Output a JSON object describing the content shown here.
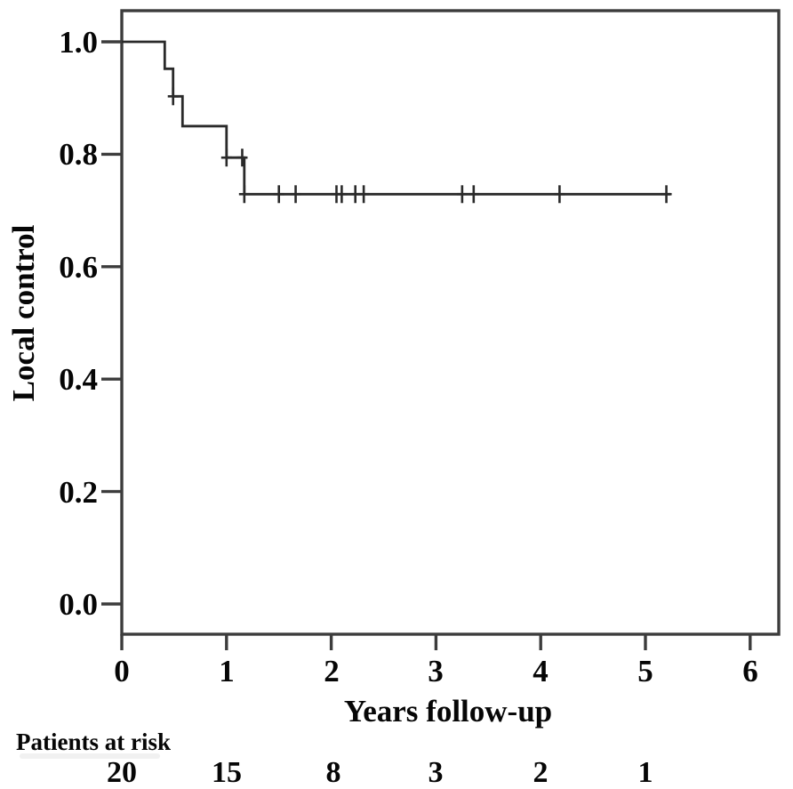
{
  "figure": {
    "background": "#ffffff",
    "frame_color": "#3c3c3c",
    "text_color": "#060606"
  },
  "chart_data": {
    "type": "line",
    "variant": "kaplan_meier_step",
    "title": "",
    "xlabel": "Years follow-up",
    "ylabel": "Local control",
    "xlim": [
      0,
      6.28
    ],
    "ylim": [
      -0.054,
      1.055
    ],
    "grid": false,
    "legend": "none",
    "xticks": [
      {
        "v": 0,
        "label": "0"
      },
      {
        "v": 1,
        "label": "1"
      },
      {
        "v": 2,
        "label": "2"
      },
      {
        "v": 3,
        "label": "3"
      },
      {
        "v": 4,
        "label": "4"
      },
      {
        "v": 5,
        "label": "5"
      },
      {
        "v": 6,
        "label": "6"
      }
    ],
    "yticks": [
      {
        "v": 1.0,
        "label": "1.0"
      },
      {
        "v": 0.8,
        "label": "0.8"
      },
      {
        "v": 0.6,
        "label": "0.6"
      },
      {
        "v": 0.4,
        "label": "0.4"
      },
      {
        "v": 0.2,
        "label": "0.2"
      },
      {
        "v": 0.0,
        "label": "0.0"
      }
    ],
    "series": [
      {
        "name": "Local control",
        "color": "#2a2a2a",
        "step_points": [
          [
            0.0,
            1.0
          ],
          [
            0.41,
            1.0
          ],
          [
            0.41,
            0.952
          ],
          [
            0.49,
            0.952
          ],
          [
            0.49,
            0.903
          ],
          [
            0.58,
            0.903
          ],
          [
            0.58,
            0.85
          ],
          [
            1.0,
            0.85
          ],
          [
            1.0,
            0.794
          ],
          [
            1.17,
            0.794
          ],
          [
            1.17,
            0.729
          ],
          [
            5.24,
            0.729
          ]
        ],
        "censor_marks": [
          [
            0.49,
            0.903
          ],
          [
            1.0,
            0.794
          ],
          [
            1.15,
            0.794
          ],
          [
            1.17,
            0.729
          ],
          [
            1.5,
            0.729
          ],
          [
            1.66,
            0.729
          ],
          [
            2.05,
            0.729
          ],
          [
            2.1,
            0.729
          ],
          [
            2.23,
            0.729
          ],
          [
            2.31,
            0.729
          ],
          [
            3.25,
            0.729
          ],
          [
            3.36,
            0.729
          ],
          [
            4.18,
            0.729
          ],
          [
            5.2,
            0.729
          ]
        ]
      }
    ],
    "risk_table": {
      "label": "Patients at risk",
      "counts": [
        {
          "t": 0,
          "n": "20"
        },
        {
          "t": 1,
          "n": "15"
        },
        {
          "t": 2,
          "n": "8"
        },
        {
          "t": 3,
          "n": "3"
        },
        {
          "t": 4,
          "n": "2"
        },
        {
          "t": 5,
          "n": "1"
        }
      ]
    }
  }
}
